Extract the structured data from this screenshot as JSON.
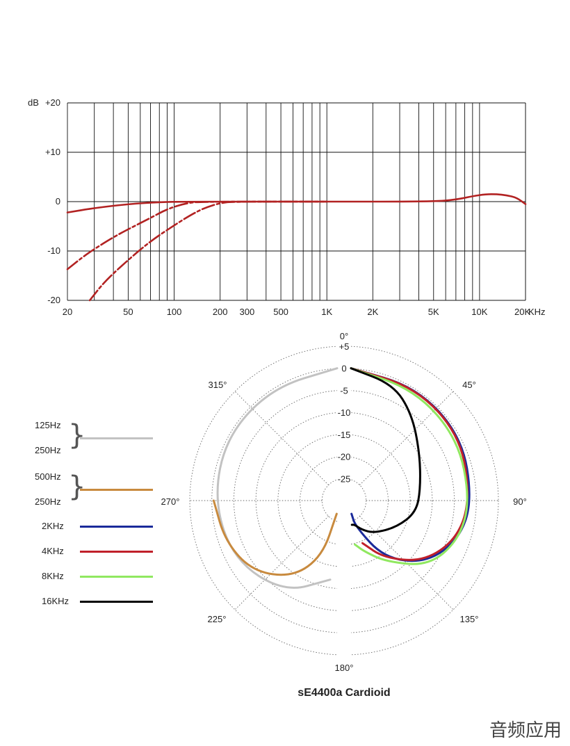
{
  "chart_data": [
    {
      "type": "line",
      "title": "",
      "xlabel": "",
      "ylabel": "dB",
      "x_scale": "log",
      "x_unit": "KHz",
      "xlim": [
        20,
        20000
      ],
      "ylim": [
        -20,
        20
      ],
      "grid": true,
      "x_tick_labels": [
        "20",
        "50",
        "100",
        "200",
        "300",
        "500",
        "1K",
        "2K",
        "5K",
        "10K",
        "20K"
      ],
      "x_tick_values": [
        20,
        50,
        100,
        200,
        300,
        500,
        1000,
        2000,
        5000,
        10000,
        20000
      ],
      "y_tick_labels": [
        "+20",
        "+10",
        "0",
        "-10",
        "-20"
      ],
      "y_tick_values": [
        20,
        10,
        0,
        -10,
        -20
      ],
      "series": [
        {
          "style": "solid",
          "color": "#b22222",
          "points": [
            [
              20,
              -2.2
            ],
            [
              30,
              -1.3
            ],
            [
              50,
              -0.5
            ],
            [
              80,
              -0.1
            ],
            [
              120,
              0
            ],
            [
              1000,
              0
            ],
            [
              5000,
              0
            ],
            [
              7000,
              0.4
            ],
            [
              9000,
              1.1
            ],
            [
              11000,
              1.5
            ],
            [
              13000,
              1.5
            ],
            [
              15000,
              1.3
            ],
            [
              17500,
              0.8
            ],
            [
              20000,
              -0.5
            ]
          ]
        },
        {
          "style": "dashed",
          "color": "#b22222",
          "points": [
            [
              20,
              -13.7
            ],
            [
              25,
              -11.3
            ],
            [
              30,
              -9.6
            ],
            [
              40,
              -7.2
            ],
            [
              50,
              -5.6
            ],
            [
              70,
              -3.3
            ],
            [
              90,
              -1.5
            ],
            [
              120,
              -0.3
            ],
            [
              150,
              0
            ],
            [
              1000,
              0
            ]
          ]
        },
        {
          "style": "dashed",
          "color": "#b22222",
          "points": [
            [
              28,
              -20
            ],
            [
              35,
              -16.2
            ],
            [
              50,
              -11.8
            ],
            [
              70,
              -8
            ],
            [
              100,
              -4.8
            ],
            [
              130,
              -2.6
            ],
            [
              160,
              -1.2
            ],
            [
              200,
              -0.3
            ],
            [
              240,
              0
            ],
            [
              1000,
              0
            ]
          ]
        }
      ]
    },
    {
      "type": "polar",
      "title": "sE4400a  Cardioid",
      "angle_labels": [
        "0°",
        "45°",
        "90°",
        "135°",
        "180°",
        "225°",
        "270°",
        "315°"
      ],
      "radial_labels": [
        "+5",
        "0",
        "-5",
        "-10",
        "-15",
        "-20",
        "-25"
      ],
      "radial_values": [
        5,
        0,
        -5,
        -10,
        -15,
        -20,
        -25
      ],
      "rlim": [
        -30,
        5
      ],
      "series": [
        {
          "name": "125Hz / 250Hz",
          "color": "#c2c2c2",
          "side": "left",
          "points": [
            [
              0,
              0
            ],
            [
              30,
              -0.5
            ],
            [
              60,
              -1
            ],
            [
              90,
              -2
            ],
            [
              120,
              -3
            ],
            [
              150,
              -6
            ],
            [
              175,
              -12
            ]
          ]
        },
        {
          "name": "500Hz / 250Hz",
          "color": "#c88a3e",
          "side": "left",
          "points": [
            [
              90,
              -2
            ],
            [
              110,
              -3
            ],
            [
              130,
              -5
            ],
            [
              150,
              -10
            ],
            [
              165,
              -17
            ],
            [
              178,
              -27
            ]
          ]
        },
        {
          "name": "2KHz",
          "color": "#1a2a9a",
          "side": "right",
          "points": [
            [
              0,
              0
            ],
            [
              30,
              -0.3
            ],
            [
              60,
              -1
            ],
            [
              90,
              -2.5
            ],
            [
              110,
              -4
            ],
            [
              130,
              -8
            ],
            [
              150,
              -15
            ],
            [
              170,
              -24
            ],
            [
              178,
              -27
            ]
          ]
        },
        {
          "name": "4KHz",
          "color": "#c0202a",
          "side": "right",
          "points": [
            [
              0,
              0
            ],
            [
              30,
              -0.4
            ],
            [
              60,
              -1.2
            ],
            [
              90,
              -3
            ],
            [
              110,
              -4.5
            ],
            [
              130,
              -8.5
            ],
            [
              150,
              -15
            ],
            [
              165,
              -20
            ]
          ]
        },
        {
          "name": "8KHz",
          "color": "#90e860",
          "side": "right",
          "points": [
            [
              0,
              0
            ],
            [
              30,
              -1
            ],
            [
              60,
              -2
            ],
            [
              90,
              -3
            ],
            [
              110,
              -4
            ],
            [
              130,
              -7
            ],
            [
              150,
              -14
            ],
            [
              165,
              -18
            ],
            [
              175,
              -20
            ]
          ]
        },
        {
          "name": "16KHz",
          "color": "#000000",
          "side": "right",
          "points": [
            [
              0,
              0
            ],
            [
              20,
              -2
            ],
            [
              35,
              -6
            ],
            [
              55,
              -11
            ],
            [
              80,
              -14
            ],
            [
              100,
              -15
            ],
            [
              120,
              -18
            ],
            [
              145,
              -21
            ],
            [
              160,
              -23
            ],
            [
              172,
              -24.5
            ],
            [
              178,
              -24.5
            ]
          ]
        }
      ]
    }
  ],
  "legend": {
    "groups": [
      {
        "labels": [
          "125Hz",
          "250Hz"
        ],
        "color": "#c2c2c2"
      },
      {
        "labels": [
          "500Hz",
          "250Hz"
        ],
        "color": "#c88a3e"
      },
      {
        "labels": [
          "2KHz"
        ],
        "color": "#1a2a9a"
      },
      {
        "labels": [
          "4KHz"
        ],
        "color": "#c0202a"
      },
      {
        "labels": [
          "8KHz"
        ],
        "color": "#90e860"
      },
      {
        "labels": [
          "16KHz"
        ],
        "color": "#000000"
      }
    ]
  },
  "watermark": "音频应用"
}
